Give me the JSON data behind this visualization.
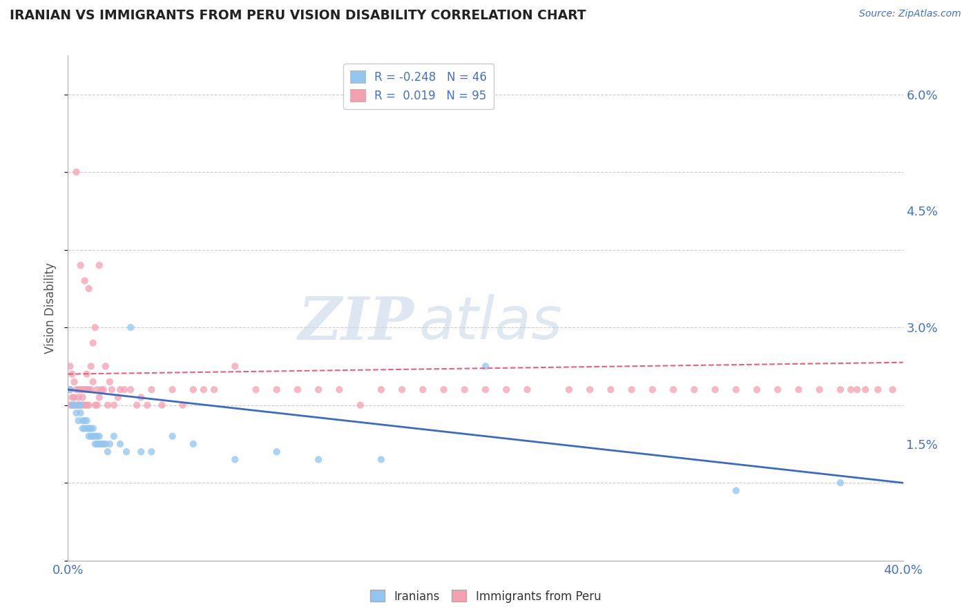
{
  "title": "IRANIAN VS IMMIGRANTS FROM PERU VISION DISABILITY CORRELATION CHART",
  "source": "Source: ZipAtlas.com",
  "ylabel": "Vision Disability",
  "xlim": [
    0.0,
    0.4
  ],
  "ylim": [
    0.0,
    0.065
  ],
  "yticks": [
    0.015,
    0.03,
    0.045,
    0.06
  ],
  "ytick_labels": [
    "1.5%",
    "3.0%",
    "4.5%",
    "6.0%"
  ],
  "legend_r1": "R = -0.248",
  "legend_n1": "N = 46",
  "legend_r2": "R =  0.019",
  "legend_n2": "N = 95",
  "color_iranians": "#92C5F0",
  "color_peru": "#F4A0B0",
  "trend_color_iranians": "#3A6BC4",
  "trend_color_peru": "#E8607A",
  "background_color": "#FFFFFF",
  "grid_color": "#CCCCCC",
  "watermark_zip": "ZIP",
  "watermark_atlas": "atlas",
  "iranians_x": [
    0.001,
    0.002,
    0.003,
    0.004,
    0.005,
    0.005,
    0.006,
    0.006,
    0.007,
    0.007,
    0.008,
    0.008,
    0.009,
    0.009,
    0.01,
    0.01,
    0.011,
    0.011,
    0.012,
    0.012,
    0.013,
    0.013,
    0.014,
    0.014,
    0.015,
    0.015,
    0.016,
    0.017,
    0.018,
    0.019,
    0.02,
    0.022,
    0.025,
    0.028,
    0.03,
    0.035,
    0.04,
    0.05,
    0.06,
    0.08,
    0.1,
    0.12,
    0.15,
    0.2,
    0.32,
    0.37
  ],
  "iranians_y": [
    0.022,
    0.02,
    0.02,
    0.019,
    0.02,
    0.018,
    0.019,
    0.02,
    0.018,
    0.017,
    0.018,
    0.017,
    0.017,
    0.018,
    0.016,
    0.017,
    0.017,
    0.016,
    0.016,
    0.017,
    0.016,
    0.015,
    0.016,
    0.015,
    0.016,
    0.015,
    0.015,
    0.015,
    0.015,
    0.014,
    0.015,
    0.016,
    0.015,
    0.014,
    0.03,
    0.014,
    0.014,
    0.016,
    0.015,
    0.013,
    0.014,
    0.013,
    0.013,
    0.025,
    0.009,
    0.01
  ],
  "peru_x": [
    0.001,
    0.001,
    0.001,
    0.002,
    0.002,
    0.002,
    0.003,
    0.003,
    0.003,
    0.004,
    0.004,
    0.004,
    0.005,
    0.005,
    0.005,
    0.006,
    0.006,
    0.006,
    0.007,
    0.007,
    0.007,
    0.008,
    0.008,
    0.008,
    0.009,
    0.009,
    0.009,
    0.01,
    0.01,
    0.01,
    0.011,
    0.011,
    0.012,
    0.012,
    0.013,
    0.013,
    0.014,
    0.014,
    0.015,
    0.015,
    0.016,
    0.017,
    0.018,
    0.019,
    0.02,
    0.021,
    0.022,
    0.024,
    0.025,
    0.027,
    0.03,
    0.033,
    0.035,
    0.038,
    0.04,
    0.045,
    0.05,
    0.055,
    0.06,
    0.065,
    0.07,
    0.08,
    0.09,
    0.1,
    0.11,
    0.12,
    0.13,
    0.14,
    0.15,
    0.16,
    0.17,
    0.18,
    0.19,
    0.2,
    0.21,
    0.22,
    0.24,
    0.25,
    0.26,
    0.27,
    0.28,
    0.29,
    0.3,
    0.31,
    0.32,
    0.33,
    0.34,
    0.35,
    0.36,
    0.37,
    0.375,
    0.378,
    0.382,
    0.388,
    0.395
  ],
  "peru_y": [
    0.025,
    0.022,
    0.02,
    0.024,
    0.021,
    0.02,
    0.023,
    0.021,
    0.02,
    0.022,
    0.05,
    0.02,
    0.022,
    0.021,
    0.02,
    0.022,
    0.038,
    0.02,
    0.022,
    0.021,
    0.02,
    0.036,
    0.022,
    0.02,
    0.024,
    0.022,
    0.02,
    0.022,
    0.035,
    0.02,
    0.025,
    0.022,
    0.023,
    0.028,
    0.03,
    0.02,
    0.022,
    0.02,
    0.021,
    0.038,
    0.022,
    0.022,
    0.025,
    0.02,
    0.023,
    0.022,
    0.02,
    0.021,
    0.022,
    0.022,
    0.022,
    0.02,
    0.021,
    0.02,
    0.022,
    0.02,
    0.022,
    0.02,
    0.022,
    0.022,
    0.022,
    0.025,
    0.022,
    0.022,
    0.022,
    0.022,
    0.022,
    0.02,
    0.022,
    0.022,
    0.022,
    0.022,
    0.022,
    0.022,
    0.022,
    0.022,
    0.022,
    0.022,
    0.022,
    0.022,
    0.022,
    0.022,
    0.022,
    0.022,
    0.022,
    0.022,
    0.022,
    0.022,
    0.022,
    0.022,
    0.022,
    0.022,
    0.022,
    0.022,
    0.022
  ]
}
